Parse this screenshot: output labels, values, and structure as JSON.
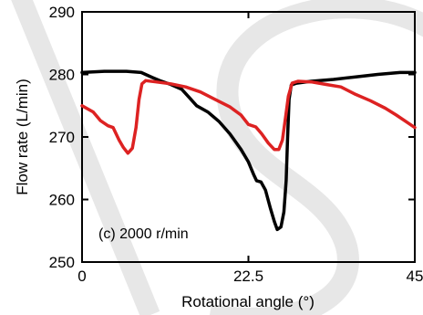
{
  "chart_data": {
    "type": "line",
    "title": "",
    "xlabel": "Rotational angle (°)",
    "ylabel": "Flow rate (L/min)",
    "xlim": [
      0,
      45
    ],
    "ylim": [
      250,
      290
    ],
    "x_ticks": [
      0,
      22.5,
      45
    ],
    "x_tick_labels": [
      "0",
      "22.5",
      "45"
    ],
    "y_ticks": [
      250,
      260,
      270,
      280,
      290
    ],
    "y_tick_labels": [
      "250",
      "260",
      "270",
      "280",
      "290"
    ],
    "annotation": "(c) 2000 r/min",
    "grid": false,
    "legend": "none",
    "series": [
      {
        "color": "#000000",
        "points": [
          [
            0,
            280.3
          ],
          [
            3,
            280.5
          ],
          [
            6,
            280.5
          ],
          [
            8,
            280.3
          ],
          [
            9.5,
            279.5
          ],
          [
            10.5,
            279.0
          ],
          [
            12,
            278.4
          ],
          [
            13.5,
            277.6
          ],
          [
            14.5,
            276.3
          ],
          [
            15.5,
            275.0
          ],
          [
            17,
            274.0
          ],
          [
            18.5,
            272.5
          ],
          [
            20,
            270.5
          ],
          [
            21.5,
            268.0
          ],
          [
            22.5,
            266.0
          ],
          [
            23.2,
            264.0
          ],
          [
            23.6,
            263.0
          ],
          [
            24.2,
            262.8
          ],
          [
            24.8,
            261.5
          ],
          [
            25.5,
            258.5
          ],
          [
            26.0,
            256.5
          ],
          [
            26.4,
            255.2
          ],
          [
            26.9,
            255.6
          ],
          [
            27.3,
            258.0
          ],
          [
            27.6,
            263.0
          ],
          [
            27.8,
            270.0
          ],
          [
            28.0,
            276.0
          ],
          [
            28.3,
            278.3
          ],
          [
            29,
            278.6
          ],
          [
            31,
            278.9
          ],
          [
            34,
            279.2
          ],
          [
            37,
            279.6
          ],
          [
            40,
            280.0
          ],
          [
            43,
            280.3
          ],
          [
            45,
            280.3
          ]
        ]
      },
      {
        "color": "#dd2222",
        "points": [
          [
            0,
            275.0
          ],
          [
            1.5,
            274.0
          ],
          [
            2.5,
            272.6
          ],
          [
            3.5,
            271.8
          ],
          [
            4.2,
            271.5
          ],
          [
            5.0,
            269.5
          ],
          [
            5.6,
            268.3
          ],
          [
            6.2,
            267.4
          ],
          [
            6.8,
            268.2
          ],
          [
            7.3,
            271.5
          ],
          [
            7.7,
            276.0
          ],
          [
            8.1,
            278.5
          ],
          [
            8.6,
            279.0
          ],
          [
            10,
            278.8
          ],
          [
            12,
            278.5
          ],
          [
            14,
            278.0
          ],
          [
            16,
            277.2
          ],
          [
            18,
            276.0
          ],
          [
            20,
            274.8
          ],
          [
            21.5,
            273.5
          ],
          [
            22.5,
            272.0
          ],
          [
            23.5,
            271.6
          ],
          [
            24.3,
            270.5
          ],
          [
            25.2,
            269.0
          ],
          [
            26.0,
            268.0
          ],
          [
            26.6,
            268.0
          ],
          [
            27.1,
            269.5
          ],
          [
            27.5,
            273.0
          ],
          [
            27.9,
            276.5
          ],
          [
            28.4,
            278.6
          ],
          [
            29.2,
            278.9
          ],
          [
            31,
            278.8
          ],
          [
            33,
            278.4
          ],
          [
            35,
            278.0
          ],
          [
            37,
            276.8
          ],
          [
            39,
            275.8
          ],
          [
            41,
            274.6
          ],
          [
            42.5,
            273.5
          ],
          [
            44,
            272.3
          ],
          [
            45,
            271.5
          ]
        ]
      }
    ]
  }
}
